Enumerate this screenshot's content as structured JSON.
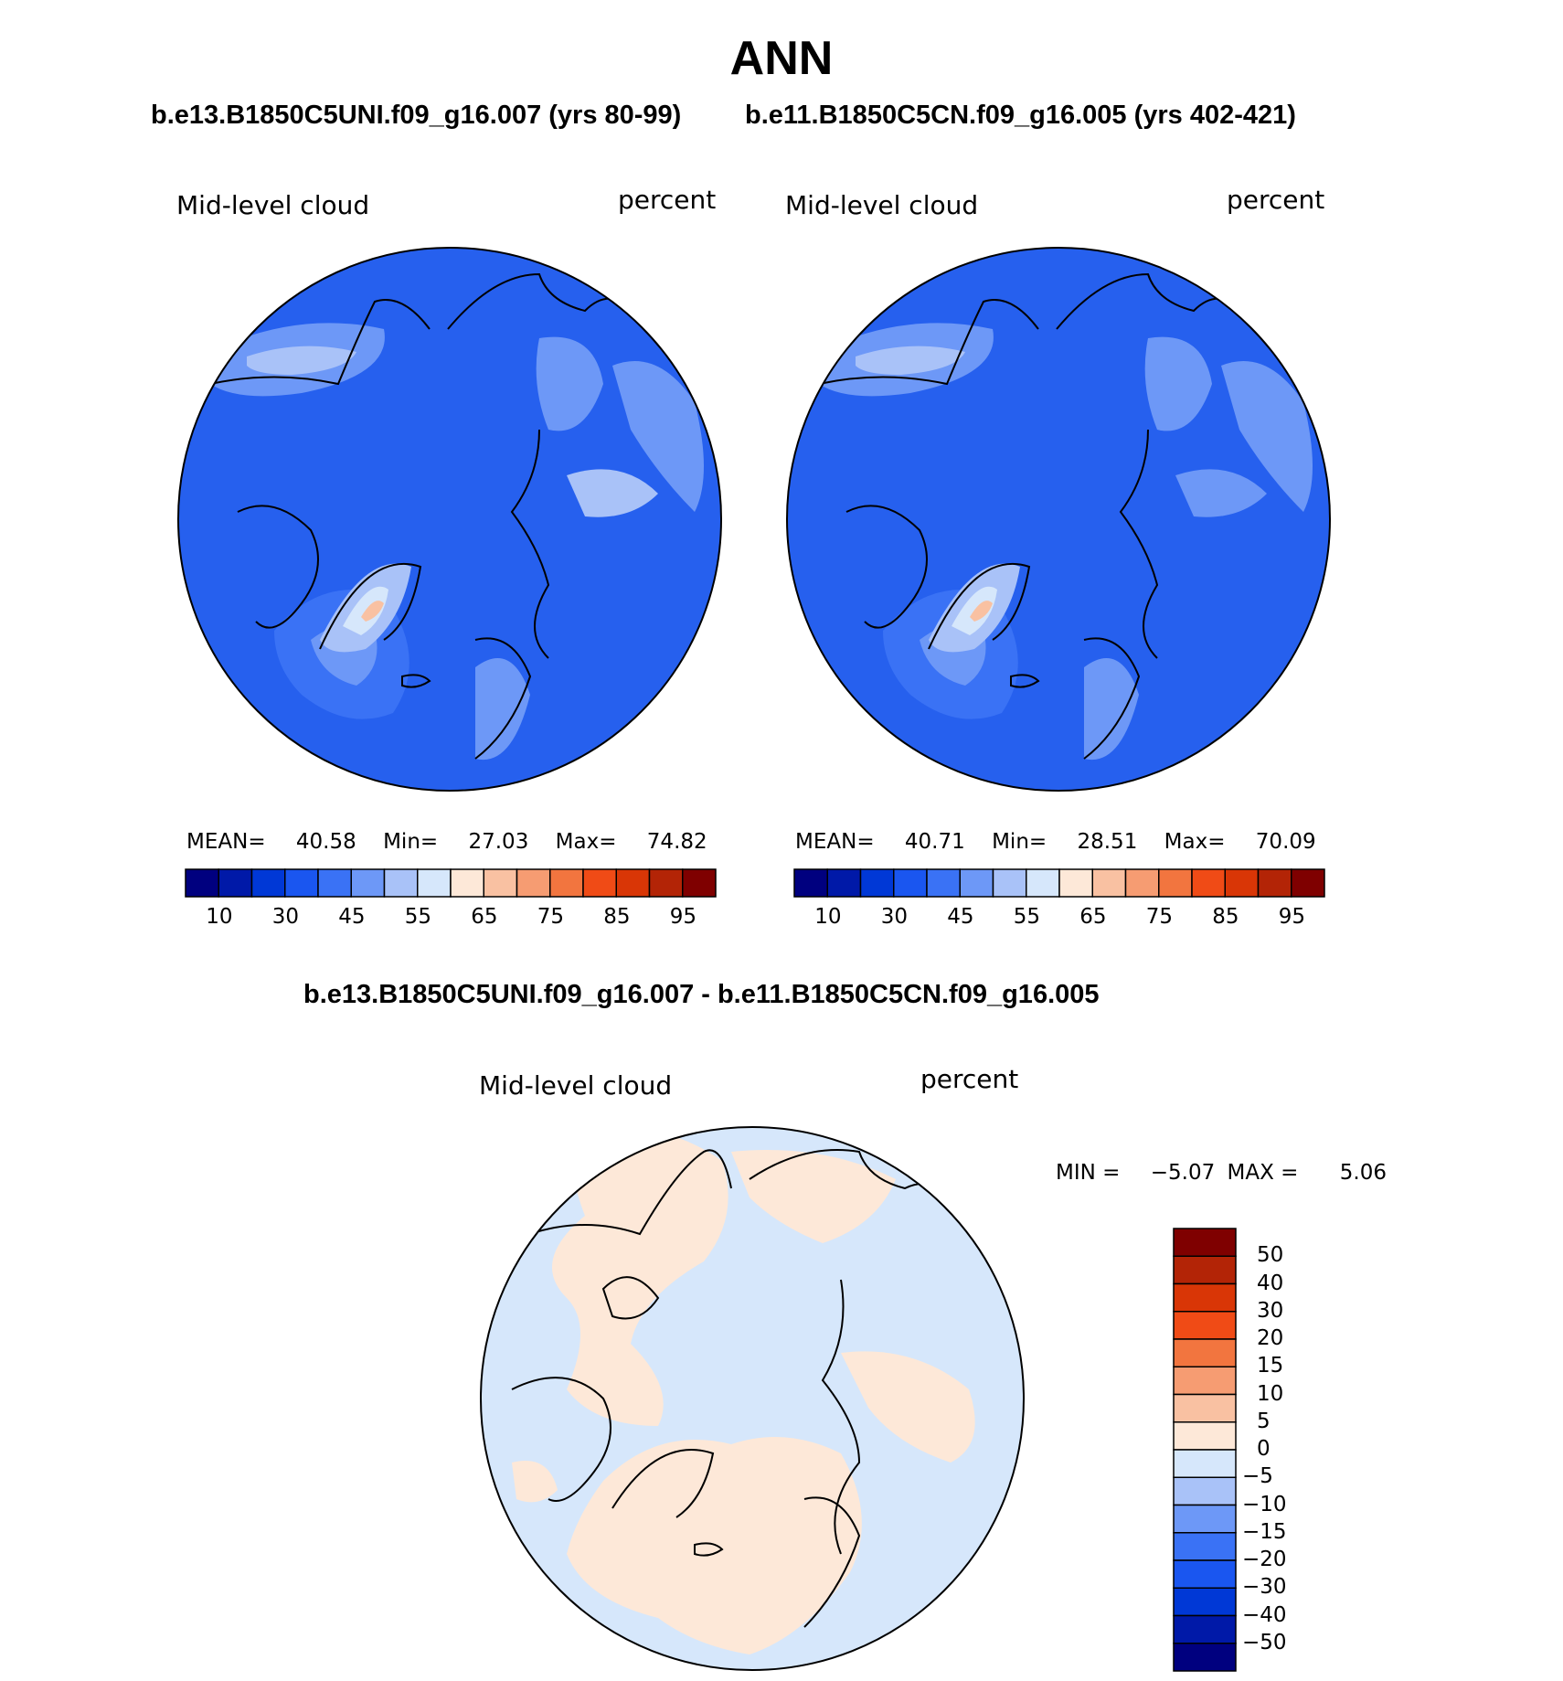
{
  "title": "ANN",
  "panels": [
    {
      "case_title": "b.e13.B1850C5UNI.f09_g16.007 (yrs 80-99)",
      "variable": "Mid-level cloud",
      "units": "percent",
      "stats": {
        "mean_label": "MEAN=",
        "mean": "40.58",
        "min_label": "Min=",
        "min": "27.03",
        "max_label": "Max=",
        "max": "74.82"
      }
    },
    {
      "case_title": "b.e11.B1850C5CN.f09_g16.005 (yrs 402-421)",
      "variable": "Mid-level cloud",
      "units": "percent",
      "stats": {
        "mean_label": "MEAN=",
        "mean": "40.71",
        "min_label": "Min=",
        "min": "28.51",
        "max_label": "Max=",
        "max": "70.09"
      }
    }
  ],
  "colorbar": {
    "colors": [
      "#00007f",
      "#0019a8",
      "#0038d6",
      "#1a56f0",
      "#3a72f5",
      "#6d98f7",
      "#a9c2f8",
      "#d6e7fb",
      "#fde8d8",
      "#f9c1a2",
      "#f69c72",
      "#f2753f",
      "#f04b16",
      "#d93606",
      "#b32406",
      "#7f0000"
    ],
    "tick_labels": [
      "10",
      "30",
      "45",
      "55",
      "65",
      "75",
      "85",
      "95"
    ]
  },
  "diff": {
    "title": "b.e13.B1850C5UNI.f09_g16.007 - b.e11.B1850C5CN.f09_g16.005",
    "variable": "Mid-level cloud",
    "units": "percent",
    "min_label": "MIN =",
    "min": "−5.07",
    "max_label": "MAX =",
    "max": "5.06",
    "colorbar": {
      "colors": [
        "#7f0000",
        "#b32406",
        "#d93606",
        "#f04b16",
        "#f2753f",
        "#f69c72",
        "#f9c1a2",
        "#fde8d8",
        "#d6e7fb",
        "#a9c2f8",
        "#6d98f7",
        "#3a72f5",
        "#1a56f0",
        "#0038d6",
        "#0019a8",
        "#00007f"
      ],
      "tick_labels": [
        "50",
        "40",
        "30",
        "20",
        "15",
        "10",
        "5",
        "0",
        "−5",
        "−10",
        "−15",
        "−20",
        "−30",
        "−40",
        "−50"
      ]
    }
  },
  "chart_data": [
    {
      "type": "heatmap",
      "title": "b.e13.B1850C5UNI.f09_g16.007 (yrs 80-99)",
      "projection": "north polar stereographic",
      "variable": "Mid-level cloud",
      "units": "percent",
      "mean": 40.58,
      "min": 27.03,
      "max": 74.82,
      "levels": [
        5,
        10,
        15,
        20,
        25,
        30,
        35,
        40,
        45,
        50,
        55,
        60,
        65,
        70,
        75,
        80,
        85,
        90,
        95
      ]
    },
    {
      "type": "heatmap",
      "title": "b.e11.B1850C5CN.f09_g16.005 (yrs 402-421)",
      "projection": "north polar stereographic",
      "variable": "Mid-level cloud",
      "units": "percent",
      "mean": 40.71,
      "min": 28.51,
      "max": 70.09,
      "levels": [
        5,
        10,
        15,
        20,
        25,
        30,
        35,
        40,
        45,
        50,
        55,
        60,
        65,
        70,
        75,
        80,
        85,
        90,
        95
      ]
    },
    {
      "type": "heatmap",
      "title": "b.e13.B1850C5UNI.f09_g16.007 - b.e11.B1850C5CN.f09_g16.005",
      "projection": "north polar stereographic",
      "variable": "Mid-level cloud",
      "units": "percent",
      "min": -5.07,
      "max": 5.06,
      "levels": [
        -50,
        -40,
        -30,
        -20,
        -15,
        -10,
        -5,
        0,
        5,
        10,
        15,
        20,
        30,
        40,
        50
      ]
    }
  ]
}
